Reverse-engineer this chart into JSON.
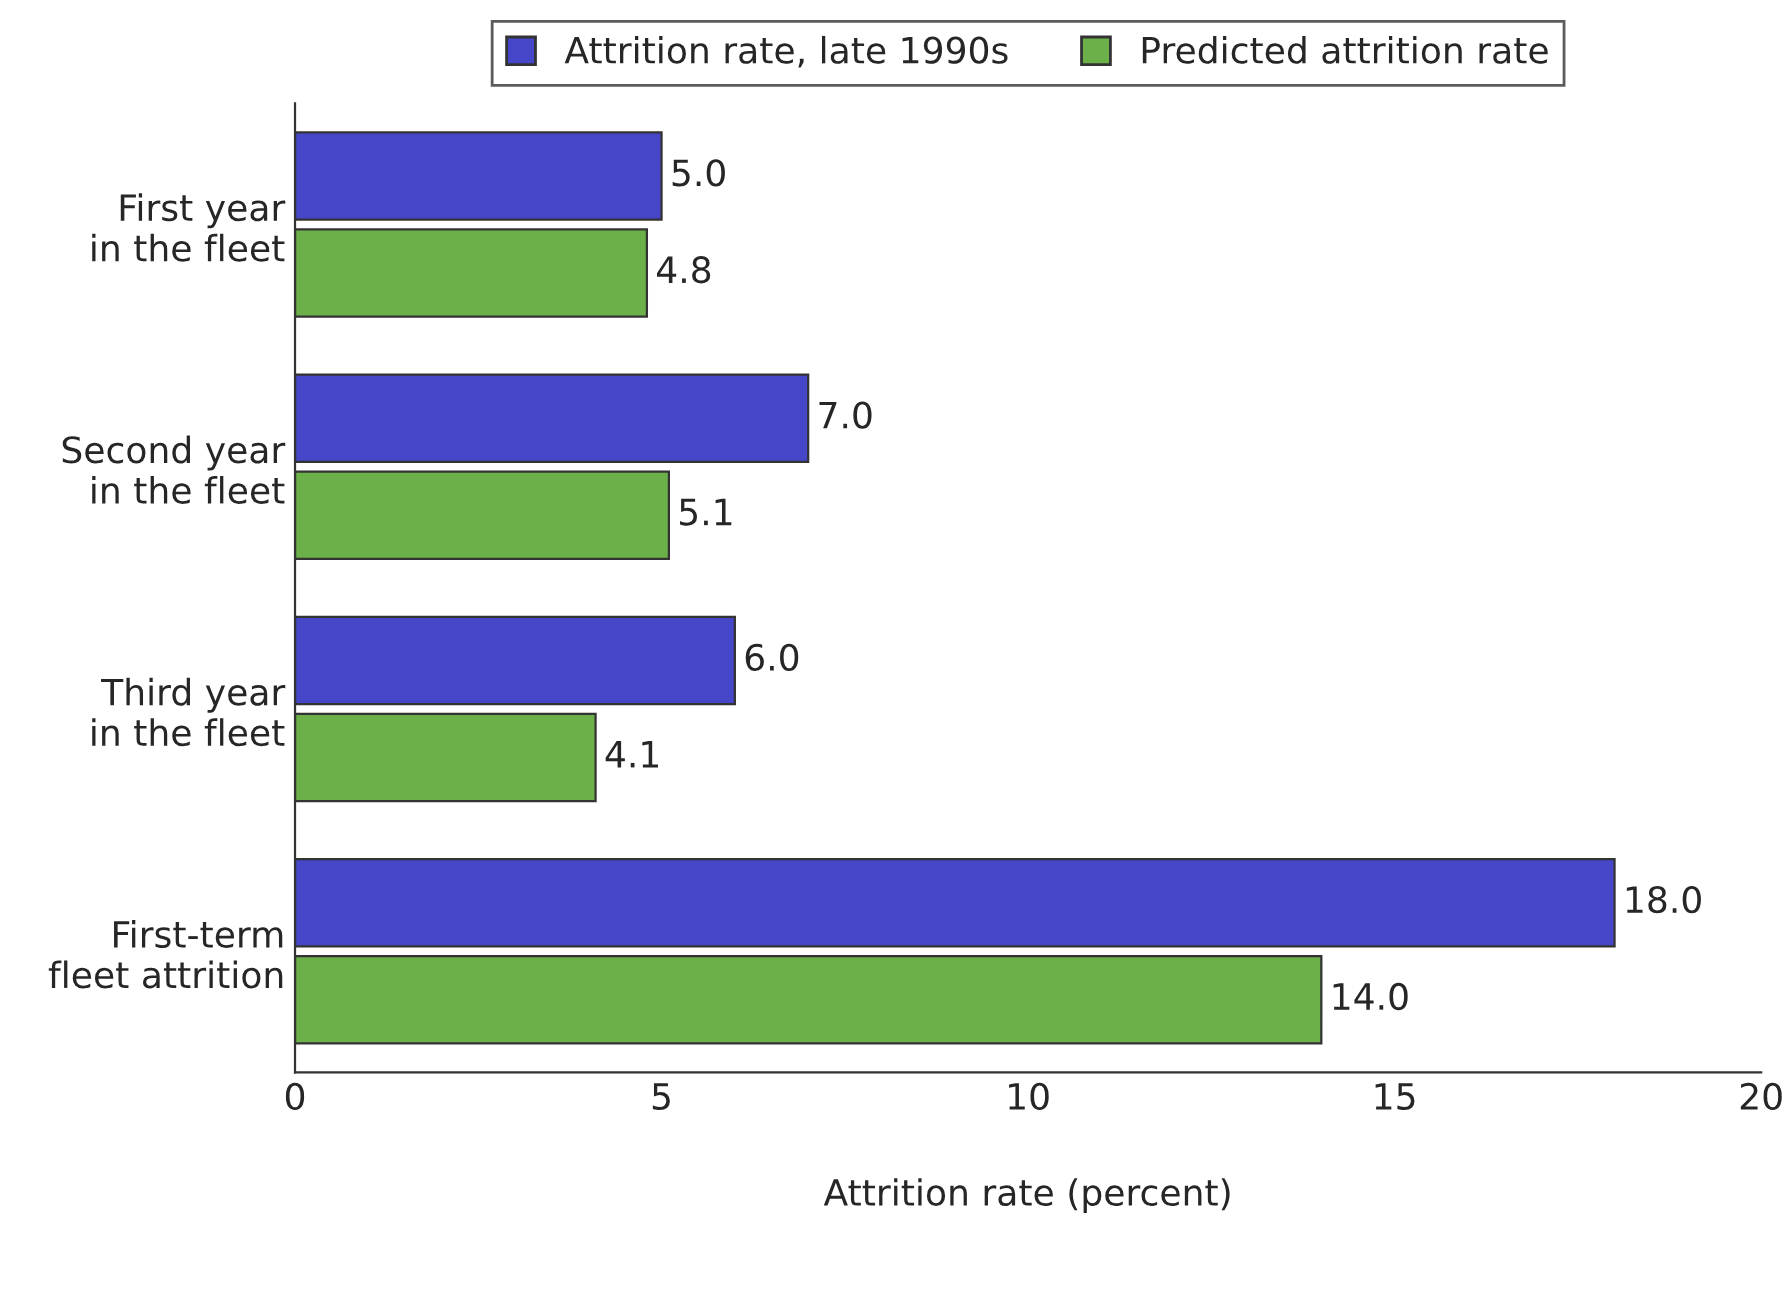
{
  "chart_data": {
    "type": "bar",
    "orientation": "horizontal",
    "xlabel": "Attrition rate (percent)",
    "categories": [
      "First year\nin the fleet",
      "Second year\nin the fleet",
      "Third year\nin the fleet",
      "First-term\nfleet attrition"
    ],
    "series": [
      {
        "name": "Attrition rate, late 1990s",
        "color": "#4646c8",
        "values": [
          5.0,
          7.0,
          6.0,
          18.0
        ],
        "value_labels": [
          "5.0",
          "7.0",
          "6.0",
          "18.0"
        ]
      },
      {
        "name": "Predicted attrition rate",
        "color": "#6cb04a",
        "values": [
          4.8,
          5.1,
          4.1,
          14.0
        ],
        "value_labels": [
          "4.8",
          "5.1",
          "4.1",
          "14.0"
        ]
      }
    ],
    "xlim": [
      0,
      20
    ],
    "xticks": [
      0,
      5,
      10,
      15,
      20
    ],
    "grid": false,
    "legend": "top"
  }
}
